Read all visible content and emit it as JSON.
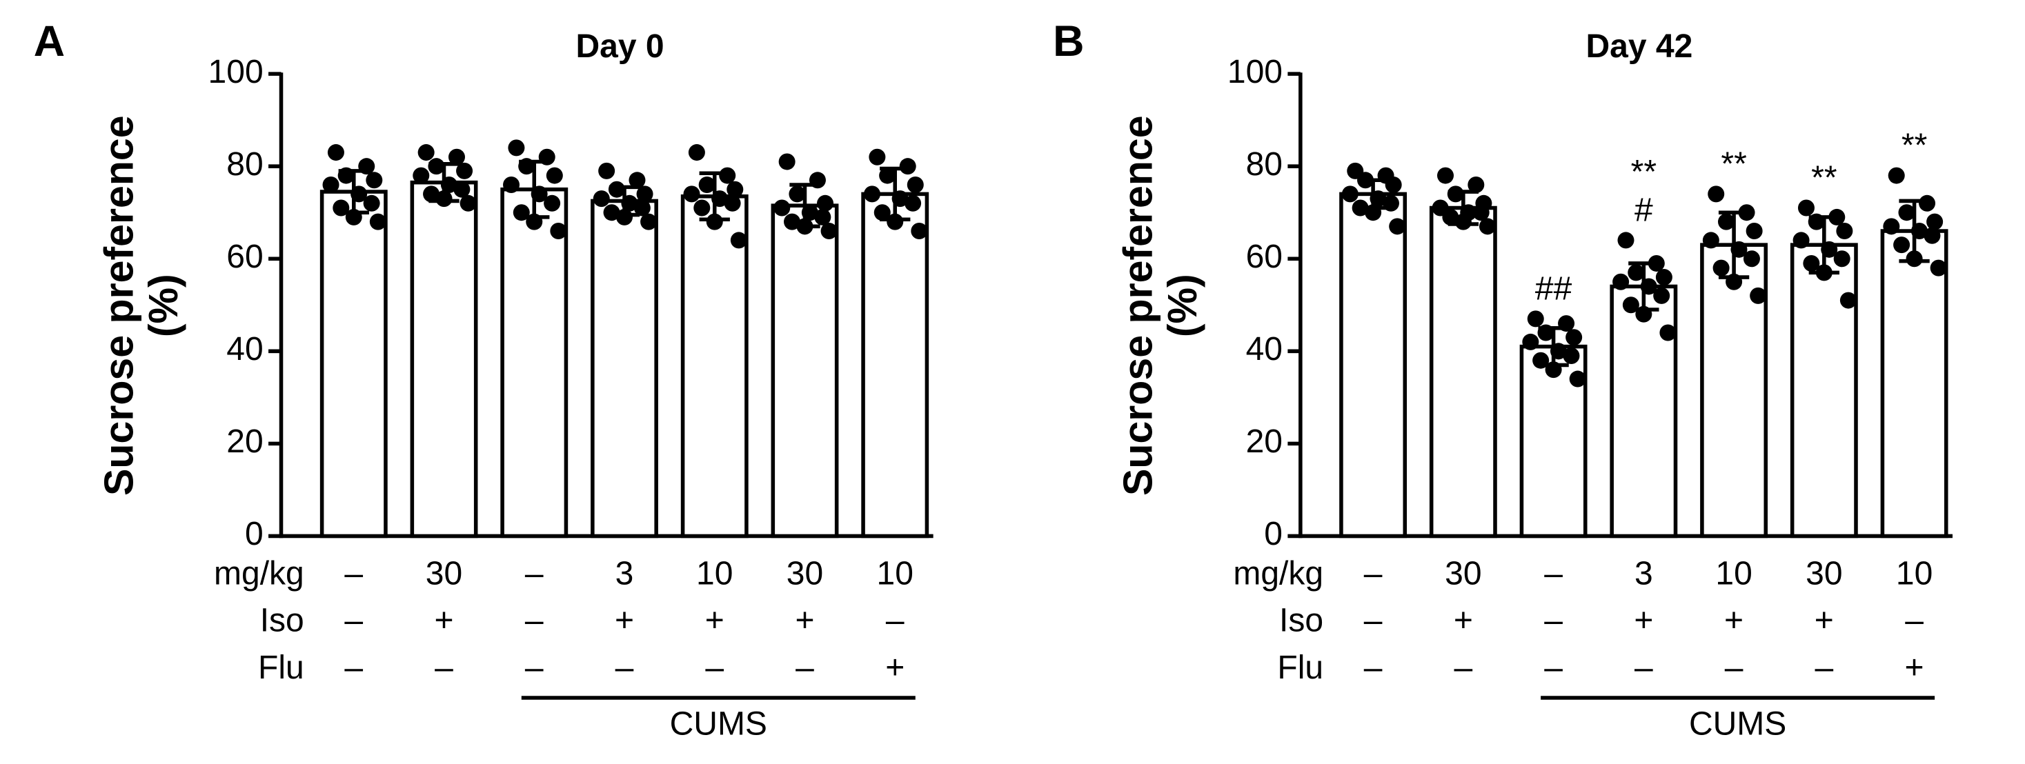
{
  "chart_data": [
    {
      "type": "bar",
      "panel_label": "A",
      "title": "Day 0",
      "y_label": [
        "Sucrose preference",
        "(%)"
      ],
      "ylim": [
        0,
        100
      ],
      "yticks": [
        0,
        20,
        40,
        60,
        80,
        100
      ],
      "color": "#ffffff",
      "edge_color": "#000000",
      "values": [
        74.5,
        76.5,
        75,
        72.5,
        73.5,
        71.5,
        74
      ],
      "errors": [
        4.5,
        4,
        6,
        3,
        5,
        4.5,
        5.5
      ],
      "points": [
        [
          83,
          80,
          78,
          77,
          76,
          74,
          72,
          71,
          69,
          68
        ],
        [
          83,
          82,
          80,
          79,
          78,
          76,
          75,
          74,
          73,
          72
        ],
        [
          84,
          82,
          80,
          78,
          76,
          74,
          72,
          70,
          68,
          66
        ],
        [
          79,
          77,
          75,
          74,
          73,
          72,
          71,
          70,
          69,
          68
        ],
        [
          83,
          78,
          76,
          75,
          74,
          73,
          72,
          71,
          68,
          64
        ],
        [
          81,
          77,
          74,
          72,
          71,
          70,
          69,
          68,
          67,
          66
        ],
        [
          82,
          80,
          78,
          76,
          74,
          73,
          72,
          70,
          68,
          66
        ]
      ],
      "annotations": [
        [],
        [],
        [],
        [],
        [],
        [],
        []
      ],
      "conditions": [
        {
          "label": "mg/kg",
          "values": [
            "–",
            "30",
            "–",
            "3",
            "10",
            "30",
            "10"
          ]
        },
        {
          "label": "Iso",
          "values": [
            "–",
            "+",
            "–",
            "+",
            "+",
            "+",
            "–"
          ]
        },
        {
          "label": "Flu",
          "values": [
            "–",
            "–",
            "–",
            "–",
            "–",
            "–",
            "+"
          ]
        }
      ],
      "group_label": "CUMS"
    },
    {
      "type": "bar",
      "panel_label": "B",
      "title": "Day 42",
      "y_label": [
        "Sucrose preference",
        "(%)"
      ],
      "ylim": [
        0,
        100
      ],
      "yticks": [
        0,
        20,
        40,
        60,
        80,
        100
      ],
      "color": "#ffffff",
      "edge_color": "#000000",
      "values": [
        74,
        71,
        41,
        54,
        63,
        63,
        66
      ],
      "errors": [
        3,
        3.5,
        4,
        5,
        7,
        6,
        6.5
      ],
      "points": [
        [
          79,
          78,
          77,
          76,
          74,
          73,
          72,
          71,
          70,
          67
        ],
        [
          78,
          76,
          74,
          72,
          71,
          70,
          70,
          69,
          68,
          67
        ],
        [
          47,
          46,
          44,
          43,
          42,
          40,
          39,
          38,
          36,
          34
        ],
        [
          64,
          59,
          57,
          56,
          55,
          54,
          52,
          50,
          48,
          44
        ],
        [
          74,
          70,
          68,
          66,
          64,
          62,
          60,
          58,
          55,
          52
        ],
        [
          71,
          69,
          68,
          66,
          64,
          62,
          60,
          59,
          57,
          51
        ],
        [
          78,
          72,
          70,
          68,
          67,
          66,
          65,
          63,
          60,
          58
        ]
      ],
      "annotations": [
        [],
        [],
        [
          "##"
        ],
        [
          "**",
          "#"
        ],
        [
          "**"
        ],
        [
          "**"
        ],
        [
          "**"
        ]
      ],
      "conditions": [
        {
          "label": "mg/kg",
          "values": [
            "–",
            "30",
            "–",
            "3",
            "10",
            "30",
            "10"
          ]
        },
        {
          "label": "Iso",
          "values": [
            "–",
            "+",
            "–",
            "+",
            "+",
            "+",
            "–"
          ]
        },
        {
          "label": "Flu",
          "values": [
            "–",
            "–",
            "–",
            "–",
            "–",
            "–",
            "+"
          ]
        }
      ],
      "group_label": "CUMS"
    }
  ]
}
